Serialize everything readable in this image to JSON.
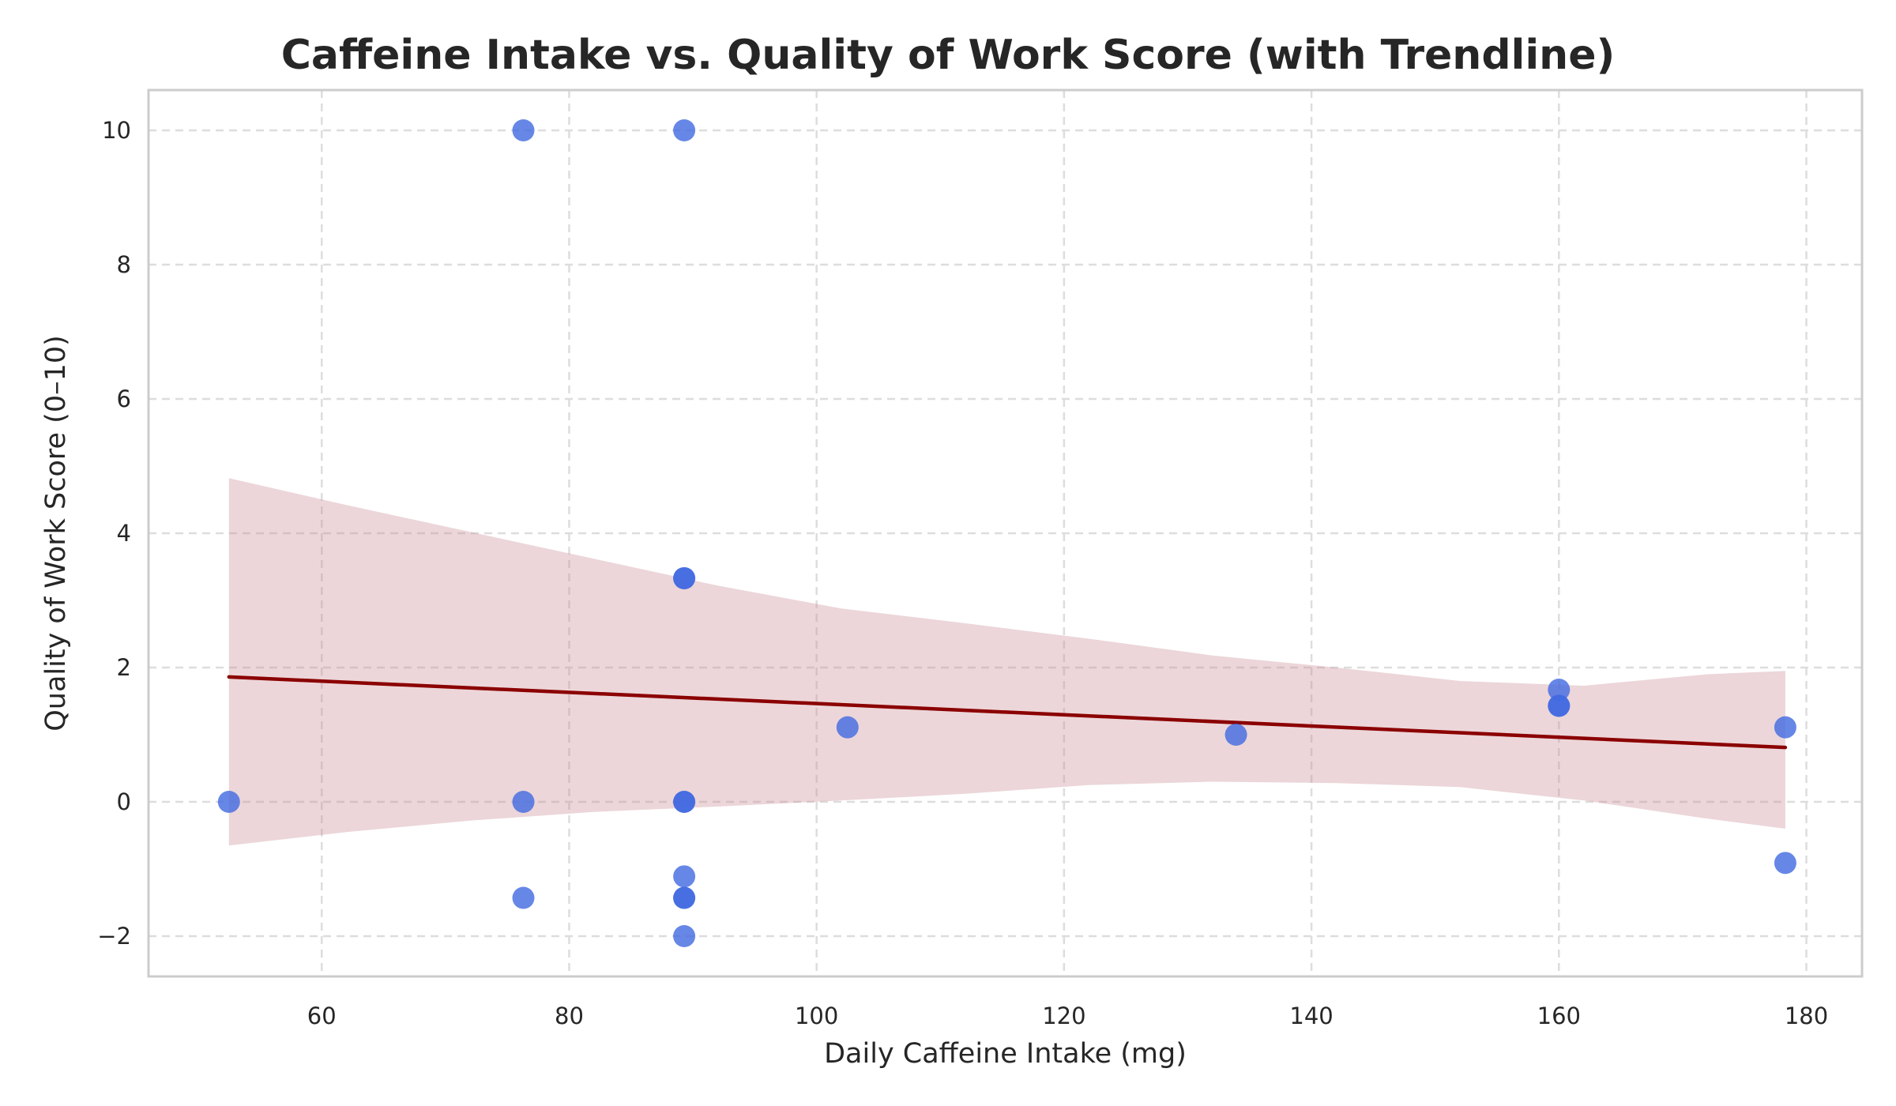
{
  "chart_data": {
    "type": "scatter",
    "title": "Caffeine Intake vs. Quality of Work Score (with Trendline)",
    "xlabel": "Daily Caffeine Intake (mg)",
    "ylabel": "Quality of Work Score (0–10)",
    "xlim": [
      46,
      184.5
    ],
    "ylim": [
      -2.6,
      10.6
    ],
    "xticks": [
      60,
      80,
      100,
      120,
      140,
      160,
      180
    ],
    "yticks": [
      -2,
      0,
      2,
      4,
      6,
      8,
      10
    ],
    "xtick_labels": [
      "60",
      "80",
      "100",
      "120",
      "140",
      "160",
      "180"
    ],
    "ytick_labels": [
      "−2",
      "0",
      "2",
      "4",
      "6",
      "8",
      "10"
    ],
    "grid": true,
    "colors": {
      "points": "#4169E1",
      "trendline": "#8B0000",
      "confidence_band": "#C98A91",
      "grid": "#DDDDDD",
      "frame": "#CCCCCC"
    },
    "points": {
      "x": [
        52.5,
        76.3,
        76.3,
        76.3,
        89.3,
        89.3,
        89.3,
        89.3,
        89.3,
        89.3,
        89.3,
        89.3,
        89.3,
        102.5,
        133.9,
        160.0,
        160.0,
        160.0,
        178.3,
        178.3
      ],
      "y": [
        0.0,
        10.0,
        0.0,
        -1.43,
        10.0,
        3.33,
        3.33,
        0.0,
        0.0,
        -1.11,
        -1.43,
        -1.43,
        -2.0,
        1.11,
        1.0,
        1.67,
        1.43,
        1.43,
        1.11,
        -0.91
      ]
    },
    "trendline": {
      "x": [
        52.5,
        178.3
      ],
      "y": [
        1.86,
        0.81
      ]
    },
    "confidence_band": {
      "x": [
        52.5,
        62,
        72,
        82,
        92,
        102,
        112,
        122,
        132,
        142,
        152,
        162,
        172,
        178.3
      ],
      "upper": [
        4.82,
        4.42,
        4.02,
        3.62,
        3.22,
        2.88,
        2.66,
        2.43,
        2.18,
        2.0,
        1.8,
        1.73,
        1.9,
        1.95
      ],
      "lower": [
        -0.65,
        -0.45,
        -0.28,
        -0.15,
        -0.07,
        0.02,
        0.12,
        0.25,
        0.3,
        0.28,
        0.22,
        0.02,
        -0.25,
        -0.4
      ]
    }
  }
}
